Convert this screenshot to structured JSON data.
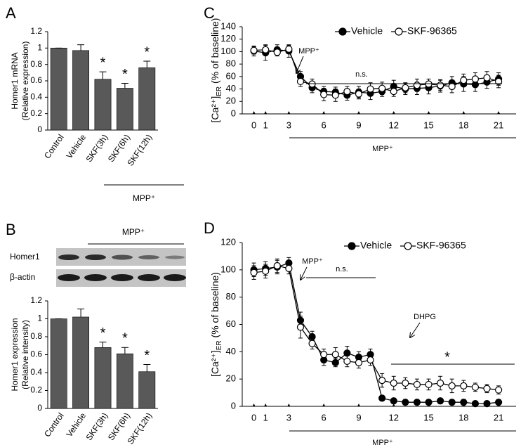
{
  "chart_data": [
    {
      "type": "bar",
      "panel_label": "A",
      "y_label": [
        "Homer1 mRNA",
        "(Relative expression)"
      ],
      "categories": [
        "Control",
        "Vehicle",
        "SKF(3h)",
        "SKF(6h)",
        "SKF(12h)"
      ],
      "values": [
        1,
        0.97,
        0.62,
        0.51,
        0.76
      ],
      "errors": [
        0,
        0.07,
        0.09,
        0.06,
        0.08
      ],
      "marks": [
        null,
        null,
        "*",
        "*",
        "*"
      ],
      "group_label": "MPP⁺",
      "color": "#595959",
      "ylim": [
        0,
        1.2
      ],
      "yticks": [
        0,
        0.2,
        0.4,
        0.6,
        0.8,
        1,
        1.2
      ]
    },
    {
      "type": "bar",
      "panel_label": "B",
      "y_label": [
        "Homer1 expression",
        "(Relative intensity)"
      ],
      "blot": {
        "rows": [
          "Homer1",
          "β-actin"
        ],
        "label": "MPP⁺"
      },
      "categories": [
        "Control",
        "Vehicle",
        "SKF(3h)",
        "SKF(6h)",
        "SKF(12h)"
      ],
      "values": [
        1,
        1.02,
        0.68,
        0.61,
        0.41
      ],
      "errors": [
        0,
        0.09,
        0.06,
        0.07,
        0.08
      ],
      "marks": [
        null,
        null,
        "*",
        "*",
        "*"
      ],
      "color": "#595959",
      "ylim": [
        0,
        1.2
      ],
      "yticks": [
        0,
        0.2,
        0.4,
        0.6,
        0.8,
        1,
        1.2
      ]
    },
    {
      "type": "line",
      "panel_label": "C",
      "y_label": [
        "[Ca²⁺]",
        "ER",
        " (% of baseline)"
      ],
      "x": [
        0,
        1,
        2,
        3,
        4,
        5,
        6,
        7,
        8,
        9,
        10,
        11,
        12,
        13,
        14,
        15,
        16,
        17,
        18,
        19,
        20,
        21
      ],
      "series": [
        {
          "name": "Vehicle",
          "color": "#000000",
          "marker_fill": "#000000",
          "values": [
            101,
            98,
            103,
            101,
            60,
            42,
            36,
            35,
            30,
            35,
            33,
            36,
            44,
            40,
            41,
            42,
            45,
            50,
            48,
            47,
            51,
            56
          ],
          "errors": [
            8,
            12,
            8,
            10,
            8,
            8,
            8,
            8,
            8,
            9,
            10,
            8,
            10,
            9,
            10,
            10,
            10,
            10,
            12,
            11,
            10,
            10
          ]
        },
        {
          "name": "SKF-96365",
          "color": "#000000",
          "marker_fill": "#ffffff",
          "values": [
            102,
            103,
            99,
            104,
            52,
            48,
            31,
            30,
            36,
            32,
            40,
            41,
            36,
            42,
            46,
            48,
            46,
            44,
            54,
            56,
            58,
            52
          ],
          "errors": [
            6,
            8,
            6,
            6,
            8,
            8,
            10,
            10,
            8,
            8,
            10,
            10,
            8,
            8,
            10,
            8,
            8,
            10,
            10,
            10,
            10,
            10
          ]
        }
      ],
      "annotations": [
        "MPP⁺",
        "n.s.",
        "MPP⁺"
      ],
      "xlim": [
        -1,
        22.5
      ],
      "xticks": [
        0,
        1,
        3,
        6,
        9,
        12,
        15,
        18,
        21
      ],
      "ylim": [
        0,
        140
      ],
      "yticks": [
        0,
        20,
        40,
        60,
        80,
        100,
        120,
        140
      ],
      "legend": "top"
    },
    {
      "type": "line",
      "panel_label": "D",
      "y_label": [
        "[Ca²⁺]",
        "ER",
        " (% of baseline)"
      ],
      "x": [
        0,
        1,
        2,
        3,
        4,
        5,
        6,
        7,
        8,
        9,
        10,
        11,
        12,
        13,
        14,
        15,
        16,
        17,
        18,
        19,
        20,
        21
      ],
      "series": [
        {
          "name": "Vehicle",
          "color": "#000000",
          "marker_fill": "#000000",
          "values": [
            100,
            101,
            102,
            105,
            63,
            51,
            34,
            32,
            39,
            36,
            38,
            6,
            4,
            3,
            3,
            3,
            4,
            3,
            3,
            2,
            2,
            3
          ],
          "errors": [
            5,
            5,
            5,
            4,
            6,
            4,
            4,
            3,
            5,
            4,
            4,
            2,
            2,
            2,
            2,
            2,
            2,
            2,
            2,
            1,
            1,
            2
          ]
        },
        {
          "name": "SKF-96365",
          "color": "#000000",
          "marker_fill": "#ffffff",
          "values": [
            98,
            99,
            103,
            101,
            58,
            46,
            38,
            38,
            33,
            32,
            34,
            19,
            17,
            17,
            16,
            16,
            17,
            15,
            15,
            14,
            13,
            12
          ],
          "errors": [
            5,
            5,
            5,
            4,
            8,
            4,
            4,
            5,
            4,
            4,
            4,
            5,
            5,
            4,
            4,
            4,
            5,
            5,
            4,
            3,
            3,
            3
          ]
        }
      ],
      "annotations": [
        "MPP⁺",
        "n.s.",
        "DHPG",
        "*",
        "MPP⁺"
      ],
      "xlim": [
        -1,
        22.5
      ],
      "xticks": [
        0,
        1,
        3,
        6,
        9,
        12,
        15,
        18,
        21
      ],
      "ylim": [
        0,
        120
      ],
      "yticks": [
        0,
        20,
        40,
        60,
        80,
        100,
        120
      ],
      "legend": "top"
    }
  ]
}
